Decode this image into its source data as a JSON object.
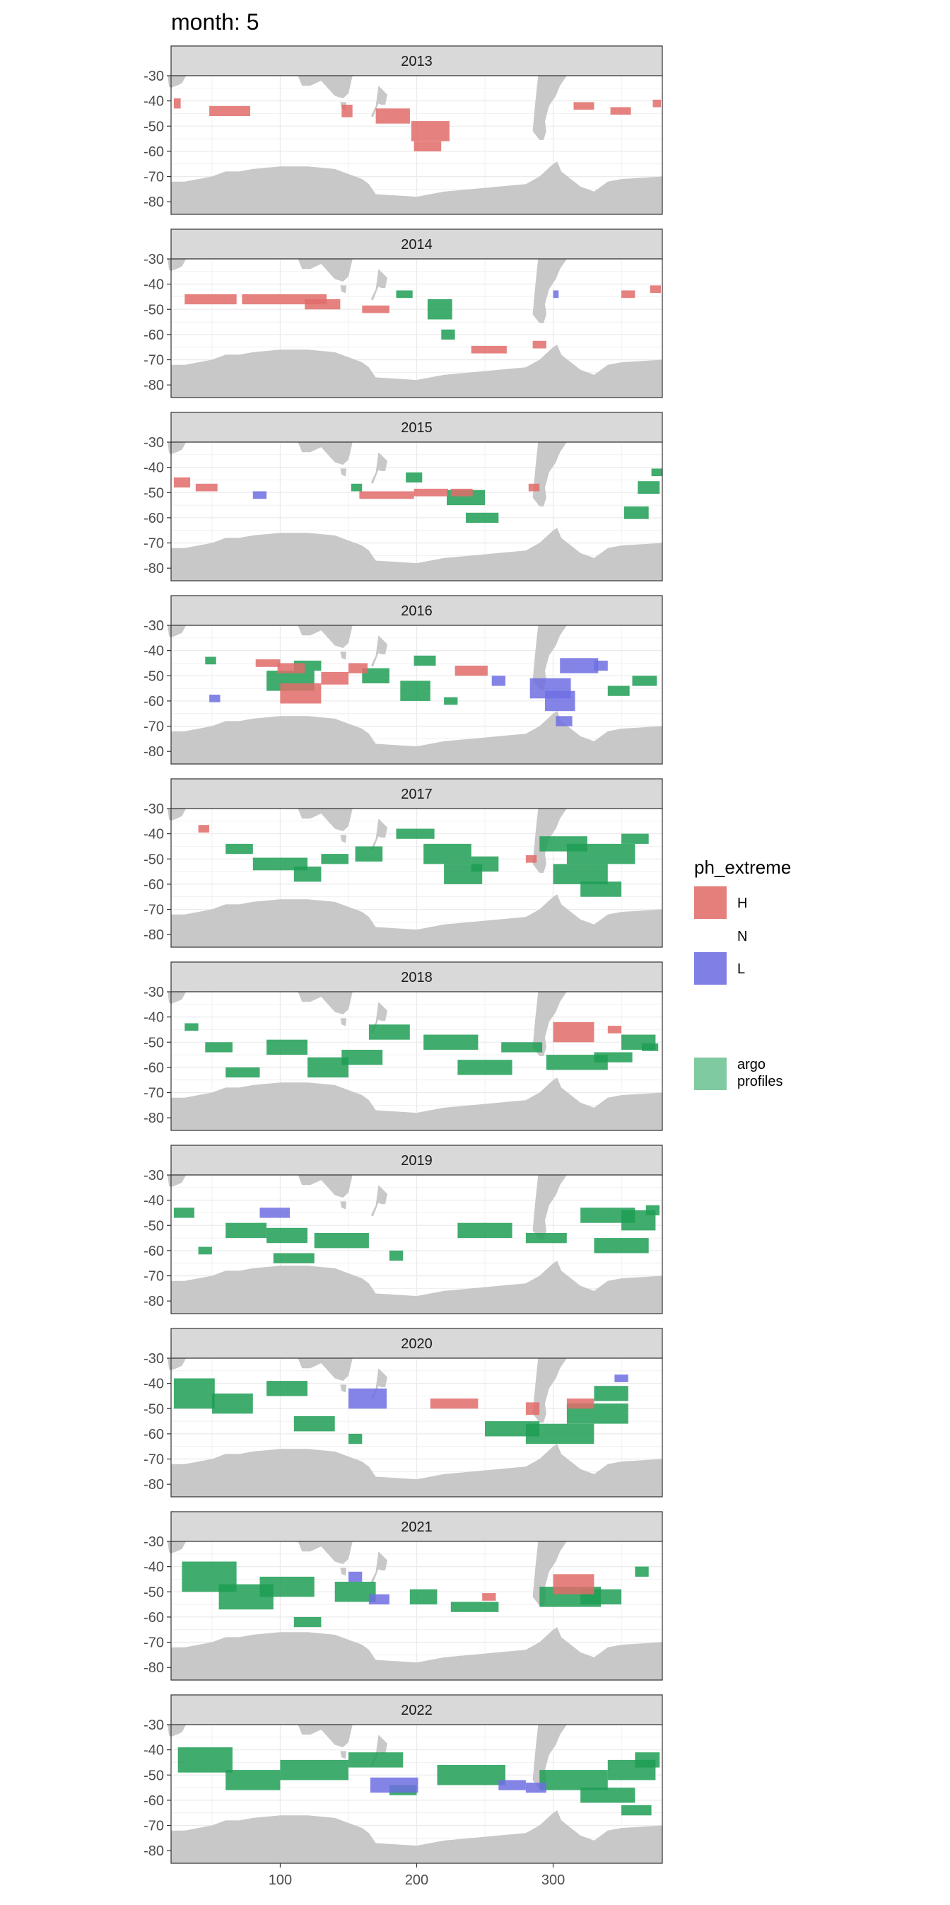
{
  "title": "month: 5",
  "chart_data": {
    "type": "heatmap",
    "facet_by": "year",
    "x_ticks": [
      100,
      200,
      300
    ],
    "y_ticks": [
      -30,
      -40,
      -50,
      -60,
      -70,
      -80
    ],
    "xlim": [
      20,
      380
    ],
    "ylim": [
      -85,
      -30
    ],
    "grid": true,
    "legend": {
      "title": "ph_extreme",
      "entries": [
        {
          "label": "H",
          "color": "#e57f7b"
        },
        {
          "label": "N",
          "color": null
        },
        {
          "label": "L",
          "color": "#7f7fe6"
        },
        {
          "label": "argo profiles",
          "color": "#7fcaa0"
        }
      ],
      "placement": "right"
    },
    "land_color": "#c8c8c8",
    "colors": {
      "H": "#e06c6a",
      "L": "#6f6fe3",
      "argo": "#1f9d55"
    },
    "panels": [
      {
        "year": "2013",
        "H": [
          [
            22,
            -41,
            5,
            4
          ],
          [
            48,
            -44,
            30,
            4
          ],
          [
            145,
            -44,
            8,
            5
          ],
          [
            170,
            -46,
            25,
            6
          ],
          [
            196,
            -52,
            28,
            8
          ],
          [
            198,
            -58,
            20,
            4
          ],
          [
            315,
            -42,
            15,
            3
          ],
          [
            342,
            -44,
            15,
            3
          ],
          [
            373,
            -41,
            6,
            3
          ]
        ],
        "L": [],
        "argo": []
      },
      {
        "year": "2014",
        "H": [
          [
            30,
            -46,
            38,
            4
          ],
          [
            72,
            -46,
            62,
            4
          ],
          [
            118,
            -48,
            26,
            4
          ],
          [
            160,
            -50,
            20,
            3
          ],
          [
            240,
            -66,
            26,
            3
          ],
          [
            285,
            -64,
            10,
            3
          ],
          [
            350,
            -44,
            10,
            3
          ],
          [
            371,
            -42,
            8,
            3
          ]
        ],
        "L": [
          [
            300,
            -44,
            4,
            3
          ]
        ],
        "argo": [
          [
            185,
            -44,
            12,
            3
          ],
          [
            208,
            -50,
            18,
            8
          ],
          [
            218,
            -60,
            10,
            4
          ]
        ]
      },
      {
        "year": "2015",
        "H": [
          [
            22,
            -46,
            12,
            4
          ],
          [
            38,
            -48,
            16,
            3
          ],
          [
            158,
            -51,
            40,
            3
          ],
          [
            198,
            -50,
            25,
            3
          ],
          [
            225,
            -50,
            16,
            3
          ],
          [
            282,
            -48,
            8,
            3
          ]
        ],
        "L": [
          [
            80,
            -51,
            10,
            3
          ]
        ],
        "argo": [
          [
            152,
            -48,
            8,
            3
          ],
          [
            192,
            -44,
            12,
            4
          ],
          [
            222,
            -52,
            28,
            6
          ],
          [
            236,
            -60,
            24,
            4
          ],
          [
            352,
            -58,
            18,
            5
          ],
          [
            362,
            -48,
            16,
            5
          ],
          [
            372,
            -42,
            8,
            3
          ]
        ]
      },
      {
        "year": "2016",
        "H": [
          [
            82,
            -45,
            18,
            3
          ],
          [
            98,
            -47,
            20,
            4
          ],
          [
            100,
            -57,
            30,
            8
          ],
          [
            130,
            -51,
            20,
            5
          ],
          [
            150,
            -47,
            14,
            4
          ],
          [
            228,
            -48,
            24,
            4
          ]
        ],
        "L": [
          [
            48,
            -59,
            8,
            3
          ],
          [
            255,
            -52,
            10,
            4
          ],
          [
            283,
            -55,
            30,
            8
          ],
          [
            294,
            -60,
            22,
            8
          ],
          [
            302,
            -68,
            12,
            4
          ],
          [
            305,
            -46,
            28,
            6
          ],
          [
            330,
            -46,
            10,
            4
          ]
        ],
        "argo": [
          [
            45,
            -44,
            8,
            3
          ],
          [
            90,
            -52,
            35,
            8
          ],
          [
            110,
            -46,
            20,
            4
          ],
          [
            160,
            -50,
            20,
            6
          ],
          [
            188,
            -56,
            22,
            8
          ],
          [
            198,
            -44,
            16,
            4
          ],
          [
            220,
            -60,
            10,
            3
          ],
          [
            340,
            -56,
            16,
            4
          ],
          [
            358,
            -52,
            18,
            4
          ]
        ]
      },
      {
        "year": "2017",
        "H": [
          [
            40,
            -38,
            8,
            3
          ],
          [
            280,
            -50,
            8,
            3
          ]
        ],
        "L": [],
        "argo": [
          [
            60,
            -46,
            20,
            4
          ],
          [
            80,
            -52,
            40,
            5
          ],
          [
            110,
            -56,
            20,
            6
          ],
          [
            130,
            -50,
            20,
            4
          ],
          [
            155,
            -48,
            20,
            6
          ],
          [
            185,
            -40,
            28,
            4
          ],
          [
            205,
            -48,
            35,
            8
          ],
          [
            220,
            -56,
            28,
            8
          ],
          [
            240,
            -52,
            20,
            6
          ],
          [
            290,
            -44,
            35,
            6
          ],
          [
            300,
            -56,
            40,
            8
          ],
          [
            310,
            -48,
            50,
            8
          ],
          [
            320,
            -62,
            30,
            6
          ],
          [
            350,
            -42,
            20,
            4
          ]
        ]
      },
      {
        "year": "2018",
        "H": [
          [
            300,
            -46,
            30,
            8
          ],
          [
            340,
            -45,
            10,
            3
          ]
        ],
        "L": [],
        "argo": [
          [
            30,
            -44,
            10,
            3
          ],
          [
            45,
            -52,
            20,
            4
          ],
          [
            60,
            -62,
            25,
            4
          ],
          [
            90,
            -52,
            30,
            6
          ],
          [
            120,
            -60,
            30,
            8
          ],
          [
            145,
            -56,
            30,
            6
          ],
          [
            165,
            -46,
            30,
            6
          ],
          [
            205,
            -50,
            40,
            6
          ],
          [
            230,
            -60,
            40,
            6
          ],
          [
            262,
            -52,
            30,
            4
          ],
          [
            295,
            -58,
            45,
            6
          ],
          [
            330,
            -56,
            28,
            4
          ],
          [
            350,
            -50,
            25,
            6
          ],
          [
            365,
            -52,
            12,
            3
          ]
        ]
      },
      {
        "year": "2019",
        "L": [
          [
            85,
            -45,
            22,
            4
          ]
        ],
        "H": [],
        "argo": [
          [
            22,
            -45,
            15,
            4
          ],
          [
            40,
            -60,
            10,
            3
          ],
          [
            60,
            -52,
            30,
            6
          ],
          [
            90,
            -54,
            30,
            6
          ],
          [
            95,
            -63,
            30,
            4
          ],
          [
            125,
            -56,
            40,
            6
          ],
          [
            180,
            -62,
            10,
            4
          ],
          [
            230,
            -52,
            40,
            6
          ],
          [
            280,
            -55,
            30,
            4
          ],
          [
            320,
            -46,
            40,
            6
          ],
          [
            330,
            -58,
            40,
            6
          ],
          [
            350,
            -48,
            25,
            8
          ],
          [
            368,
            -44,
            10,
            4
          ]
        ]
      },
      {
        "year": "2020",
        "H": [
          [
            210,
            -48,
            35,
            4
          ],
          [
            280,
            -50,
            10,
            5
          ],
          [
            310,
            -48,
            20,
            4
          ]
        ],
        "L": [
          [
            150,
            -46,
            28,
            8
          ],
          [
            345,
            -38,
            10,
            3
          ]
        ],
        "argo": [
          [
            22,
            -44,
            30,
            12
          ],
          [
            50,
            -48,
            30,
            8
          ],
          [
            90,
            -42,
            30,
            6
          ],
          [
            110,
            -56,
            30,
            6
          ],
          [
            150,
            -62,
            10,
            4
          ],
          [
            250,
            -58,
            40,
            6
          ],
          [
            280,
            -60,
            50,
            8
          ],
          [
            310,
            -52,
            45,
            8
          ],
          [
            330,
            -44,
            25,
            6
          ]
        ]
      },
      {
        "year": "2021",
        "H": [
          [
            300,
            -47,
            30,
            8
          ],
          [
            248,
            -52,
            10,
            3
          ]
        ],
        "L": [
          [
            150,
            -44,
            10,
            4
          ],
          [
            165,
            -53,
            15,
            4
          ]
        ],
        "argo": [
          [
            28,
            -44,
            40,
            12
          ],
          [
            55,
            -52,
            40,
            10
          ],
          [
            85,
            -48,
            40,
            8
          ],
          [
            110,
            -62,
            20,
            4
          ],
          [
            140,
            -50,
            30,
            8
          ],
          [
            195,
            -52,
            20,
            6
          ],
          [
            225,
            -56,
            35,
            4
          ],
          [
            290,
            -52,
            45,
            8
          ],
          [
            320,
            -52,
            30,
            6
          ],
          [
            360,
            -42,
            10,
            4
          ]
        ]
      },
      {
        "year": "2022",
        "H": [],
        "L": [
          [
            166,
            -54,
            35,
            6
          ],
          [
            260,
            -54,
            20,
            4
          ],
          [
            280,
            -55,
            15,
            4
          ]
        ],
        "argo": [
          [
            25,
            -44,
            40,
            10
          ],
          [
            60,
            -52,
            40,
            8
          ],
          [
            100,
            -48,
            50,
            8
          ],
          [
            150,
            -44,
            40,
            6
          ],
          [
            180,
            -56,
            20,
            4
          ],
          [
            215,
            -50,
            50,
            8
          ],
          [
            290,
            -52,
            50,
            8
          ],
          [
            320,
            -58,
            40,
            6
          ],
          [
            340,
            -48,
            35,
            8
          ],
          [
            360,
            -44,
            18,
            6
          ],
          [
            350,
            -64,
            22,
            4
          ]
        ]
      }
    ]
  }
}
